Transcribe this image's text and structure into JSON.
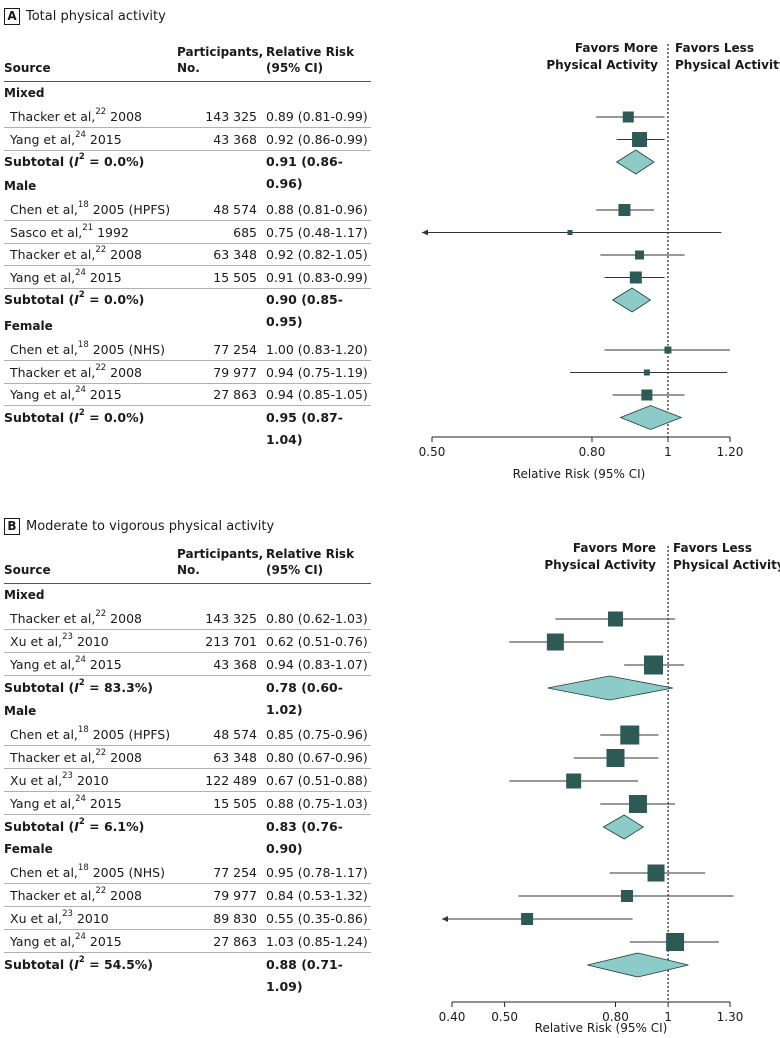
{
  "chart_data": [
    {
      "type": "forest",
      "panel_label": "A",
      "title": "Total physical activity",
      "xlabel": "Relative Risk (95% CI)",
      "x_scale": "log",
      "ticks": [
        0.5,
        0.8,
        1,
        1.2
      ],
      "tick_labels": [
        "0.50",
        "0.80",
        "1",
        "1.20"
      ],
      "xlim": [
        0.5,
        1.2
      ],
      "favors_left": [
        "Favors More",
        "Physical Activity"
      ],
      "favors_right": [
        "Favors Less",
        "Physical Activity"
      ],
      "columns": {
        "source": "Source",
        "participants": [
          "Participants,",
          "No."
        ],
        "rr": [
          "Relative Risk",
          "(95% CI)"
        ]
      },
      "groups": [
        {
          "name": "Mixed",
          "studies": [
            {
              "author": "Thacker et al,",
              "ref": "22",
              "year": "2008",
              "n": "143 325",
              "ci": "0.89 (0.81-0.99)",
              "rr": 0.89,
              "lo": 0.81,
              "hi": 0.99,
              "w": 11
            },
            {
              "author": "Yang et al,",
              "ref": "24",
              "year": "2015",
              "n": "43 368",
              "ci": "0.92 (0.86-0.99)",
              "rr": 0.92,
              "lo": 0.86,
              "hi": 0.99,
              "w": 15
            }
          ],
          "subtotal": {
            "i2": "0.0%",
            "ci": "0.91 (0.86-0.96)",
            "rr": 0.91,
            "lo": 0.86,
            "hi": 0.96
          }
        },
        {
          "name": "Male",
          "studies": [
            {
              "author": "Chen et al,",
              "ref": "18",
              "year": "2005 (HPFS)",
              "n": "48 574",
              "ci": "0.88 (0.81-0.96)",
              "rr": 0.88,
              "lo": 0.81,
              "hi": 0.96,
              "w": 12
            },
            {
              "author": "Sasco et al,",
              "ref": "21",
              "year": "1992",
              "n": "685",
              "ci": "0.75 (0.48-1.17)",
              "rr": 0.75,
              "lo": 0.48,
              "hi": 1.17,
              "w": 5,
              "arrow_left": true
            },
            {
              "author": "Thacker et al,",
              "ref": "22",
              "year": "2008",
              "n": "63 348",
              "ci": "0.92 (0.82-1.05)",
              "rr": 0.92,
              "lo": 0.82,
              "hi": 1.05,
              "w": 9
            },
            {
              "author": "Yang et al,",
              "ref": "24",
              "year": "2015",
              "n": "15 505",
              "ci": "0.91 (0.83-0.99)",
              "rr": 0.91,
              "lo": 0.83,
              "hi": 0.99,
              "w": 12
            }
          ],
          "subtotal": {
            "i2": "0.0%",
            "ci": "0.90 (0.85-0.95)",
            "rr": 0.9,
            "lo": 0.85,
            "hi": 0.95
          }
        },
        {
          "name": "Female",
          "studies": [
            {
              "author": "Chen et al,",
              "ref": "18",
              "year": "2005 (NHS)",
              "n": "77 254",
              "ci": "1.00 (0.83-1.20)",
              "rr": 1.0,
              "lo": 0.83,
              "hi": 1.2,
              "w": 7
            },
            {
              "author": "Thacker et al,",
              "ref": "22",
              "year": "2008",
              "n": "79 977",
              "ci": "0.94 (0.75-1.19)",
              "rr": 0.94,
              "lo": 0.75,
              "hi": 1.19,
              "w": 6
            },
            {
              "author": "Yang et al,",
              "ref": "24",
              "year": "2015",
              "n": "27 863",
              "ci": "0.94 (0.85-1.05)",
              "rr": 0.94,
              "lo": 0.85,
              "hi": 1.05,
              "w": 11
            }
          ],
          "subtotal": {
            "i2": "0.0%",
            "ci": "0.95 (0.87-1.04)",
            "rr": 0.95,
            "lo": 0.87,
            "hi": 1.04
          }
        }
      ]
    },
    {
      "type": "forest",
      "panel_label": "B",
      "title": "Moderate to vigorous physical activity",
      "xlabel": "Relative Risk (95% CI)",
      "x_scale": "log",
      "ticks": [
        0.4,
        0.5,
        0.8,
        1,
        1.3
      ],
      "tick_labels": [
        "0.40",
        "0.50",
        "0.80",
        "1",
        "1.30"
      ],
      "xlim": [
        0.4,
        1.3
      ],
      "favors_left": [
        "Favors More",
        "Physical Activity"
      ],
      "favors_right": [
        "Favors Less",
        "Physical Activity"
      ],
      "columns": {
        "source": "Source",
        "participants": [
          "Participants,",
          "No."
        ],
        "rr": [
          "Relative Risk",
          "(95% CI)"
        ]
      },
      "groups": [
        {
          "name": "Mixed",
          "studies": [
            {
              "author": "Thacker et al,",
              "ref": "22",
              "year": "2008",
              "n": "143 325",
              "ci": "0.80 (0.62-1.03)",
              "rr": 0.8,
              "lo": 0.62,
              "hi": 1.03,
              "w": 15
            },
            {
              "author": "Xu et al,",
              "ref": "23",
              "year": "2010",
              "n": "213 701",
              "ci": "0.62 (0.51-0.76)",
              "rr": 0.62,
              "lo": 0.51,
              "hi": 0.76,
              "w": 17
            },
            {
              "author": "Yang et al,",
              "ref": "24",
              "year": "2015",
              "n": "43 368",
              "ci": "0.94 (0.83-1.07)",
              "rr": 0.94,
              "lo": 0.83,
              "hi": 1.07,
              "w": 19
            }
          ],
          "subtotal": {
            "i2": "83.3%",
            "ci": "0.78 (0.60-1.02)",
            "rr": 0.78,
            "lo": 0.6,
            "hi": 1.02
          }
        },
        {
          "name": "Male",
          "studies": [
            {
              "author": "Chen et al,",
              "ref": "18",
              "year": "2005 (HPFS)",
              "n": "48 574",
              "ci": "0.85 (0.75-0.96)",
              "rr": 0.85,
              "lo": 0.75,
              "hi": 0.96,
              "w": 19
            },
            {
              "author": "Thacker et al,",
              "ref": "22",
              "year": "2008",
              "n": "63 348",
              "ci": "0.80 (0.67-0.96)",
              "rr": 0.8,
              "lo": 0.67,
              "hi": 0.96,
              "w": 18
            },
            {
              "author": "Xu et al,",
              "ref": "23",
              "year": "2010",
              "n": "122 489",
              "ci": "0.67 (0.51-0.88)",
              "rr": 0.67,
              "lo": 0.51,
              "hi": 0.88,
              "w": 15
            },
            {
              "author": "Yang et al,",
              "ref": "24",
              "year": "2015",
              "n": "15 505",
              "ci": "0.88 (0.75-1.03)",
              "rr": 0.88,
              "lo": 0.75,
              "hi": 1.03,
              "w": 18
            }
          ],
          "subtotal": {
            "i2": "6.1%",
            "ci": "0.83 (0.76-0.90)",
            "rr": 0.83,
            "lo": 0.76,
            "hi": 0.9
          }
        },
        {
          "name": "Female",
          "studies": [
            {
              "author": "Chen et al,",
              "ref": "18",
              "year": "2005 (NHS)",
              "n": "77 254",
              "ci": "0.95 (0.78-1.17)",
              "rr": 0.95,
              "lo": 0.78,
              "hi": 1.17,
              "w": 17
            },
            {
              "author": "Thacker et al,",
              "ref": "22",
              "year": "2008",
              "n": "79 977",
              "ci": "0.84 (0.53-1.32)",
              "rr": 0.84,
              "lo": 0.53,
              "hi": 1.32,
              "w": 12
            },
            {
              "author": "Xu et al,",
              "ref": "23",
              "year": "2010",
              "n": "89 830",
              "ci": "0.55 (0.35-0.86)",
              "rr": 0.55,
              "lo": 0.35,
              "hi": 0.86,
              "w": 12,
              "arrow_left": true
            },
            {
              "author": "Yang et al,",
              "ref": "24",
              "year": "2015",
              "n": "27 863",
              "ci": "1.03 (0.85-1.24)",
              "rr": 1.03,
              "lo": 0.85,
              "hi": 1.24,
              "w": 18
            }
          ],
          "subtotal": {
            "i2": "54.5%",
            "ci": "0.88 (0.71-1.09)",
            "rr": 0.88,
            "lo": 0.71,
            "hi": 1.09
          }
        }
      ]
    }
  ],
  "colors": {
    "square": "#2e5a55",
    "diamond": "#8ccbc7",
    "diamond_stroke": "#1f3d3a",
    "ci_line": "#333333"
  }
}
